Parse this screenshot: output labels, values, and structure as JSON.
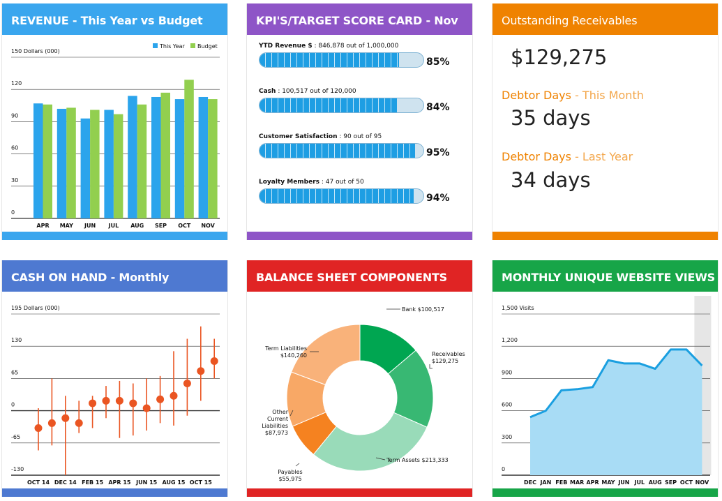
{
  "colors": {
    "this_year": "#2ba4ec",
    "budget": "#92cf4f",
    "cash_marker": "#ea5522",
    "area_fill": "#a8dcf5",
    "area_line": "#1a9fe0",
    "gridline": "#333333"
  },
  "revenue": {
    "title": "REVENUE - This Year vs Budget",
    "chart_data": {
      "type": "bar",
      "title": "REVENUE - This Year vs Budget",
      "ylabel": "150 Dollars (000)",
      "ylim": [
        0,
        150
      ],
      "yticks": [
        "120",
        "90",
        "60",
        "30",
        "0"
      ],
      "categories": [
        "APR",
        "MAY",
        "JUN",
        "JUL",
        "AUG",
        "SEP",
        "OCT",
        "NOV"
      ],
      "legend": [
        "This Year",
        "Budget"
      ],
      "series": [
        {
          "name": "This Year",
          "values": [
            107,
            102,
            93,
            101,
            114,
            113,
            111,
            113
          ]
        },
        {
          "name": "Budget",
          "values": [
            106,
            103,
            101,
            97,
            106,
            117,
            129,
            111
          ]
        }
      ]
    }
  },
  "kpi": {
    "title": "KPI'S/TARGET SCORE CARD - Nov",
    "items": [
      {
        "name": "YTD Revenue $",
        "detail": " : 846,878 out of 1,000,000",
        "fraction": 0.85,
        "pct": "85%"
      },
      {
        "name": "Cash",
        "detail": " : 100,517 out of 120,000",
        "fraction": 0.84,
        "pct": "84%"
      },
      {
        "name": "Customer Satisfaction",
        "detail": " : 90 out of 95",
        "fraction": 0.95,
        "pct": "95%"
      },
      {
        "name": "Loyalty Members",
        "detail": " : 47 out of 50",
        "fraction": 0.94,
        "pct": "94%"
      }
    ]
  },
  "receivables": {
    "title": "Outstanding Receivables",
    "amount": "$129,275",
    "debtor_label": "Debtor Days",
    "this_month_label": " - This Month",
    "this_month_value": "35 days",
    "last_year_label": " - Last Year",
    "last_year_value": "34 days"
  },
  "cash": {
    "title": "CASH ON HAND - Monthly",
    "chart_data": {
      "type": "scatter",
      "title": "CASH ON HAND - Monthly",
      "ylabel": "195 Dollars (000)",
      "ylim": [
        -130,
        195
      ],
      "yticks": [
        "130",
        "65",
        "0",
        "-65",
        "-130"
      ],
      "xlabels": [
        "OCT 14",
        "DEC 14",
        "FEB 15",
        "APR 15",
        "JUN 15",
        "AUG 15",
        "OCT 15"
      ],
      "x": [
        "OCT 14",
        "NOV 14",
        "DEC 14",
        "JAN 15",
        "FEB 15",
        "MAR 15",
        "APR 15",
        "MAY 15",
        "JUN 15",
        "JUL 15",
        "AUG 15",
        "SEP 15",
        "OCT 15",
        "NOV 15"
      ],
      "values": [
        -35,
        -25,
        -15,
        -25,
        15,
        20,
        20,
        15,
        5,
        23,
        30,
        55,
        80,
        100
      ],
      "low": [
        -80,
        -70,
        -130,
        -45,
        -35,
        -15,
        -55,
        -50,
        -40,
        -25,
        -30,
        -10,
        20,
        65
      ],
      "high": [
        5,
        65,
        30,
        20,
        30,
        50,
        60,
        55,
        65,
        70,
        120,
        145,
        170,
        145
      ]
    }
  },
  "balance": {
    "title": "BALANCE SHEET COMPONENTS",
    "chart_data": {
      "type": "pie",
      "title": "BALANCE SHEET COMPONENTS",
      "categories": [
        "Bank",
        "Receivables",
        "Term Assets",
        "Payables",
        "Other Current Liabilities",
        "Term Liabilities"
      ],
      "values": [
        100517,
        129275,
        213333,
        55975,
        87973,
        140260
      ],
      "labels": [
        {
          "name": "Bank",
          "value": "$100,517"
        },
        {
          "name": "Receivables",
          "value": "$129,275"
        },
        {
          "name": "Term Assets",
          "value": "$213,333"
        },
        {
          "name": "Payables",
          "value": "$55,975"
        },
        {
          "name": "Other Current Liabilities",
          "value": "$87,973"
        },
        {
          "name": "Term Liabilities",
          "value": "$140,260"
        }
      ],
      "colors": [
        "#00a651",
        "#38b873",
        "#99dbb9",
        "#f58220",
        "#f8a866",
        "#f9b27a"
      ]
    }
  },
  "views": {
    "title": "MONTHLY UNIQUE WEBSITE VIEWS",
    "chart_data": {
      "type": "area",
      "title": "MONTHLY UNIQUE WEBSITE VIEWS",
      "ylabel": "1,500 Visits",
      "ylim": [
        0,
        1500
      ],
      "yticks": [
        "1,200",
        "900",
        "600",
        "300",
        "0"
      ],
      "categories": [
        "DEC",
        "JAN",
        "FEB",
        "MAR",
        "APR",
        "MAY",
        "JUN",
        "JUL",
        "AUG",
        "SEP",
        "OCT",
        "NOV"
      ],
      "values": [
        540,
        600,
        790,
        800,
        820,
        1070,
        1040,
        1040,
        990,
        1170,
        1170,
        1020
      ],
      "highlight": "NOV"
    }
  }
}
